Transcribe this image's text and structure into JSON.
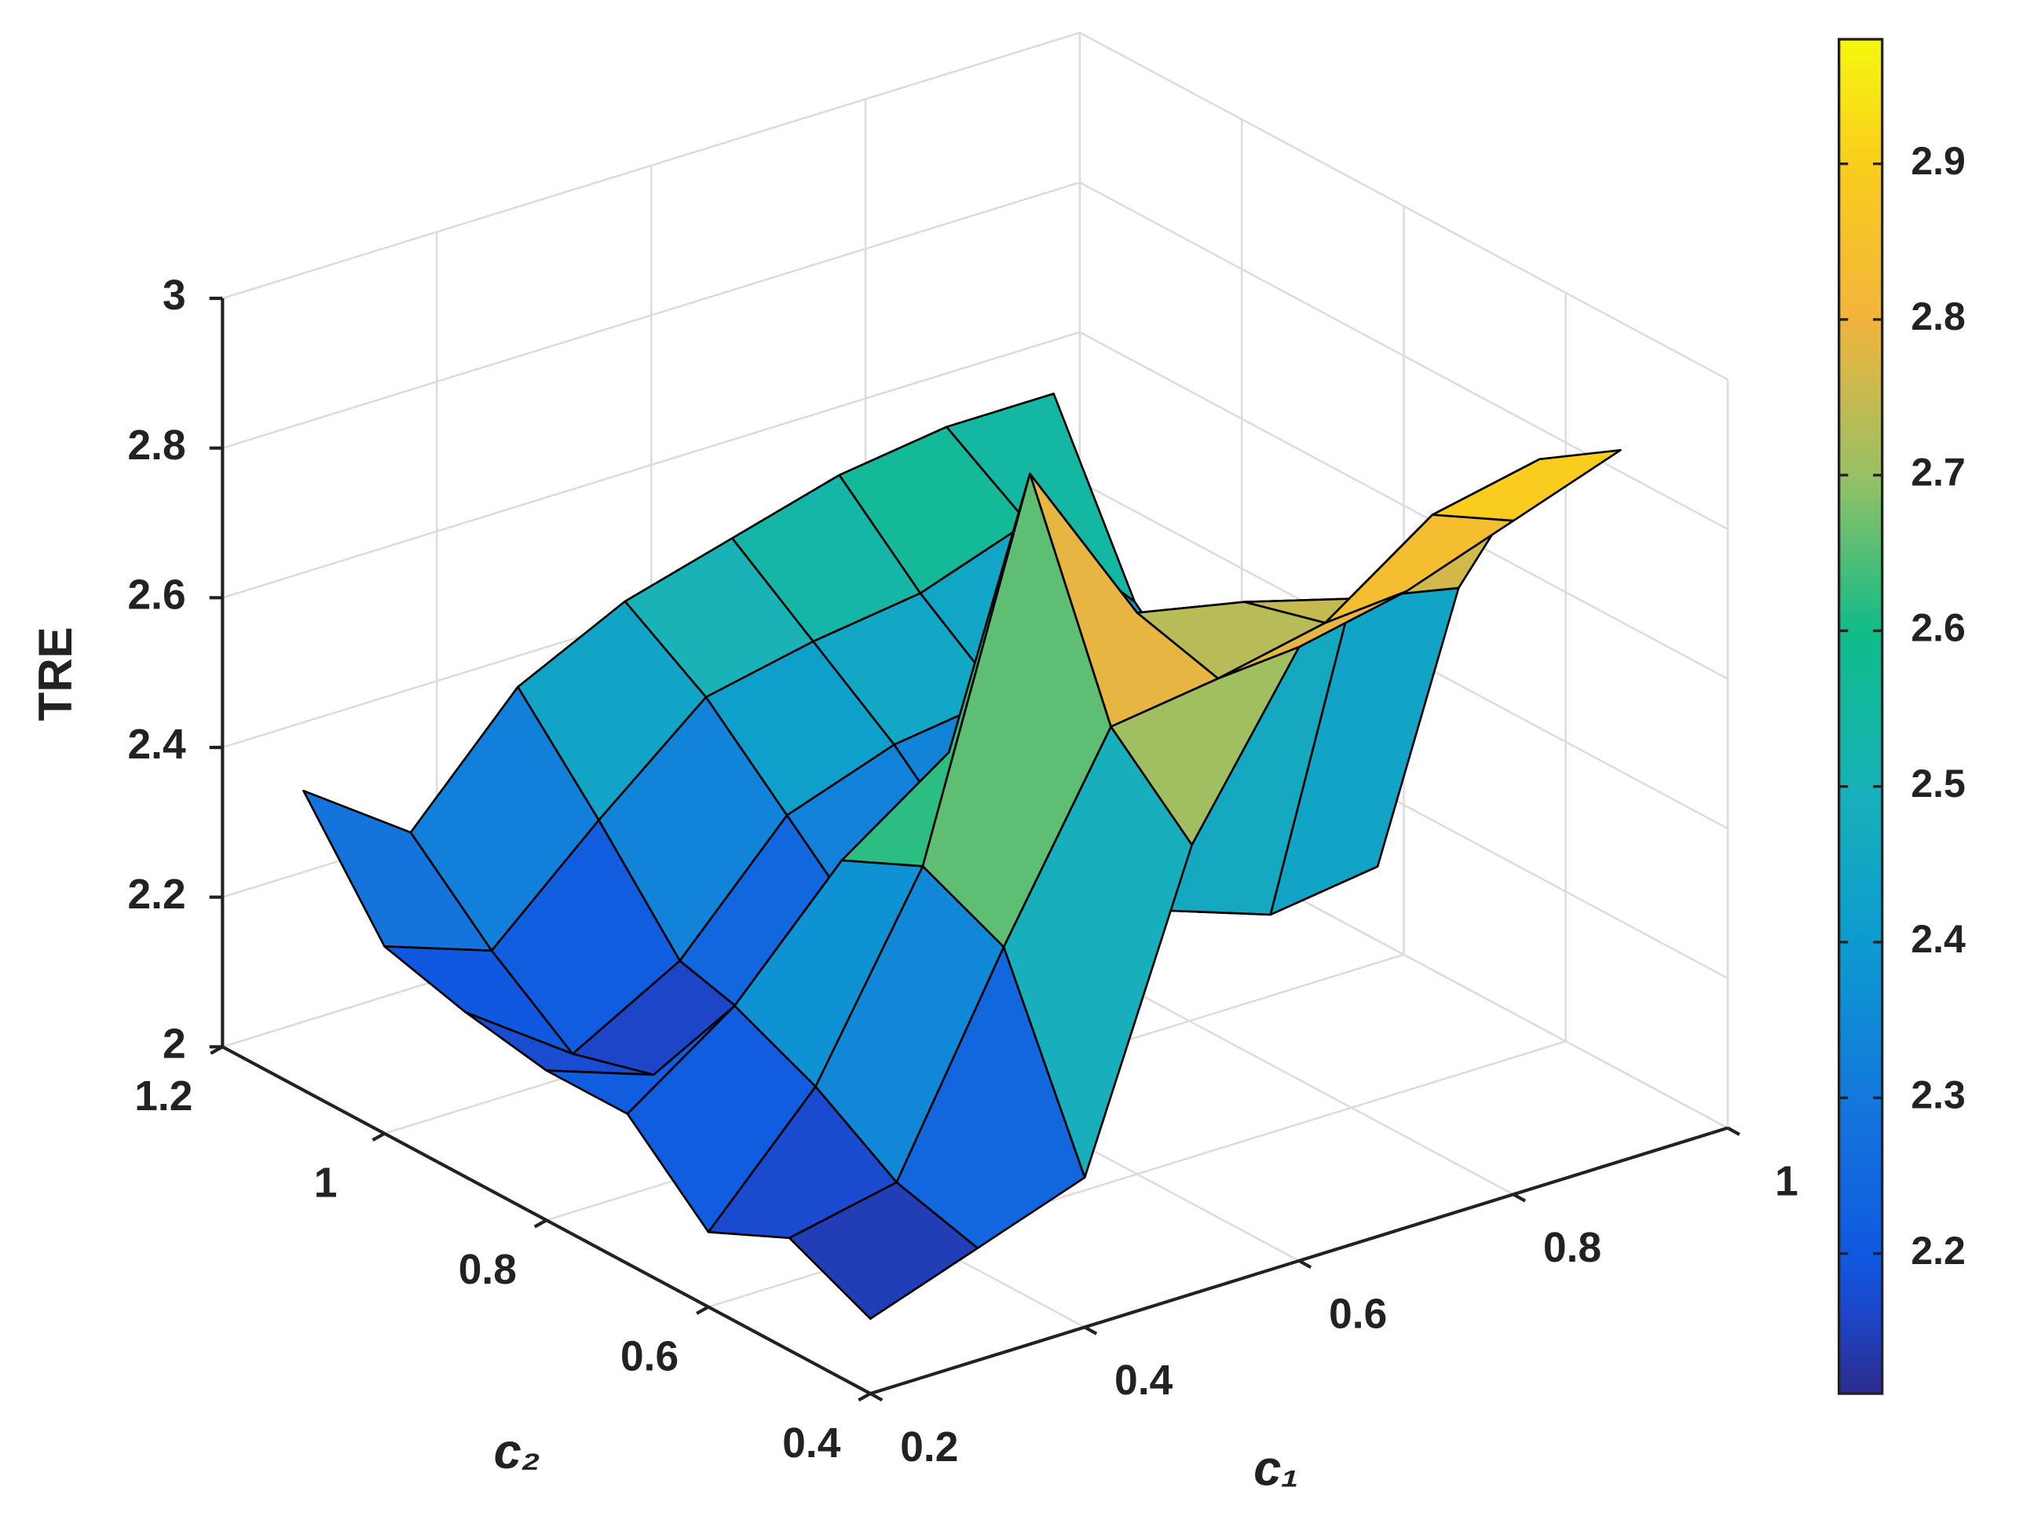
{
  "chart_data": {
    "type": "surface",
    "x": [
      0.2,
      0.3,
      0.4,
      0.5,
      0.6,
      0.7,
      0.8,
      0.9
    ],
    "y": [
      0.4,
      0.5,
      0.6,
      0.7,
      0.8,
      0.9,
      1.0,
      1.1
    ],
    "z": [
      [
        2.1,
        2.15,
        2.2,
        2.6,
        2.82,
        2.85,
        2.9,
        2.95
      ],
      [
        2.15,
        2.18,
        2.45,
        2.7,
        2.72,
        2.75,
        2.85,
        2.88
      ],
      [
        2.1,
        2.25,
        2.5,
        2.98,
        2.75,
        2.72,
        2.68,
        2.65
      ],
      [
        2.2,
        2.3,
        2.45,
        2.55,
        2.6,
        2.25,
        2.2,
        2.22
      ],
      [
        2.2,
        2.15,
        2.17,
        2.25,
        2.3,
        2.22,
        2.25,
        2.25
      ],
      [
        2.22,
        2.12,
        2.2,
        2.35,
        2.4,
        2.42,
        2.3,
        2.3
      ],
      [
        2.25,
        2.2,
        2.33,
        2.45,
        2.48,
        2.5,
        2.55,
        2.4
      ],
      [
        2.4,
        2.3,
        2.45,
        2.52,
        2.56,
        2.6,
        2.62,
        2.62
      ]
    ],
    "xlabel": "c₁",
    "ylabel": "c₂",
    "zlabel": "TRE",
    "xlim": [
      0.2,
      1
    ],
    "ylim": [
      0.4,
      1.2
    ],
    "zlim": [
      2,
      3
    ],
    "xticks": [
      0.2,
      0.4,
      0.6,
      0.8,
      1
    ],
    "yticks": [
      0.4,
      0.6,
      0.8,
      1,
      1.2
    ],
    "zticks": [
      2,
      2.2,
      2.4,
      2.6,
      2.8,
      3
    ],
    "grid": true,
    "colorbar": {
      "clim": [
        2.11,
        2.98
      ],
      "ticks": [
        2.2,
        2.3,
        2.4,
        2.5,
        2.6,
        2.7,
        2.8,
        2.9
      ]
    }
  }
}
